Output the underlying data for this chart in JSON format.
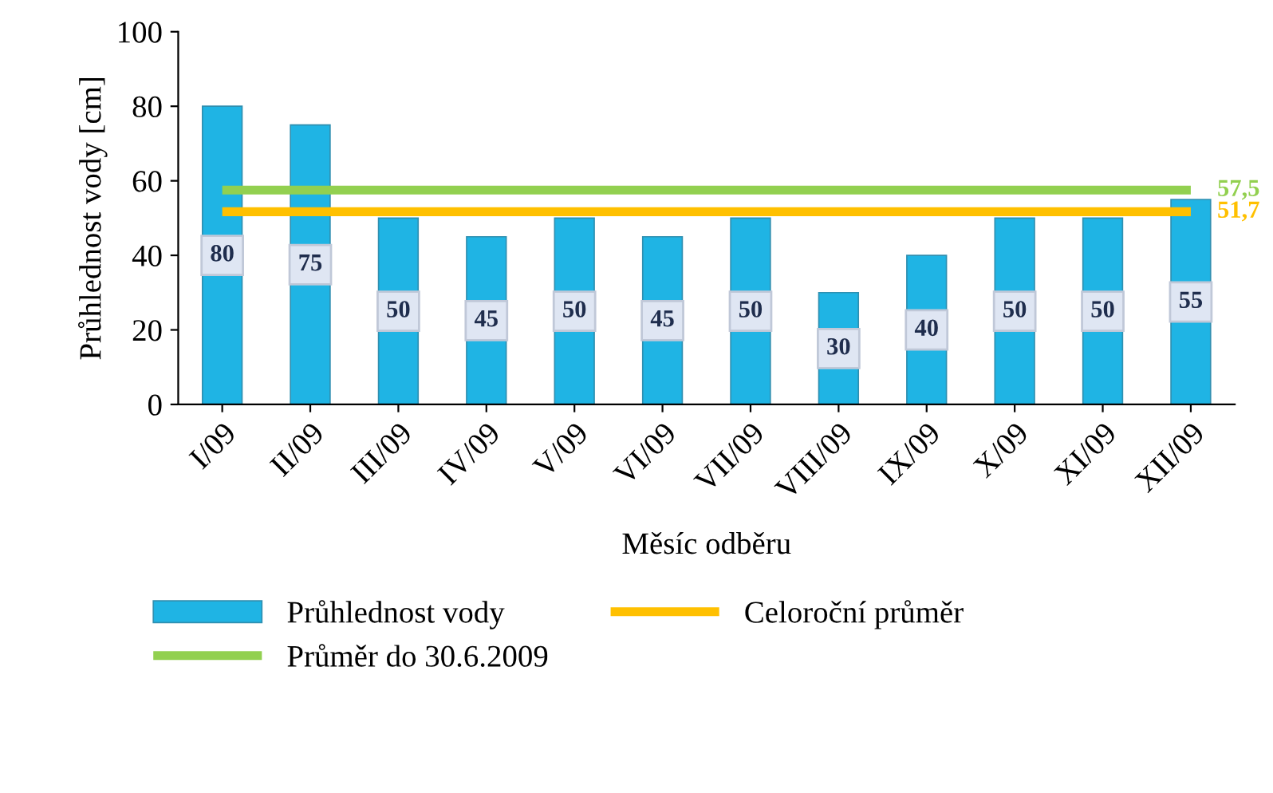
{
  "chart_data": {
    "type": "bar",
    "xlabel": "Měsíc odběru",
    "ylabel": "Průhlednost vody [cm]",
    "categories": [
      "I/09",
      "II/09",
      "III/09",
      "IV/09",
      "V/09",
      "VI/09",
      "VII/09",
      "VIII/09",
      "IX/09",
      "X/09",
      "XI/09",
      "XII/09"
    ],
    "ylim": [
      0,
      100
    ],
    "yticks": [
      0,
      20,
      40,
      60,
      80,
      100
    ],
    "grid": false,
    "legend": "bottom",
    "series": [
      {
        "name": "Průhlednost vody",
        "color": "#1fb4e4",
        "values": [
          80,
          75,
          50,
          45,
          50,
          45,
          50,
          30,
          40,
          50,
          50,
          55
        ],
        "data_labels": true
      },
      {
        "name": "Celoroční průměr",
        "type": "line",
        "color": "#ffc000",
        "values": [
          51.7,
          51.7,
          51.7,
          51.7,
          51.7,
          51.7,
          51.7,
          51.7,
          51.7,
          51.7,
          51.7,
          51.7
        ],
        "value_labels": [
          null,
          null,
          null,
          null,
          null,
          null,
          null,
          null,
          null,
          null,
          null,
          "51,7"
        ]
      },
      {
        "name": "Průměr do 30.6.2009",
        "type": "line",
        "color": "#92d050",
        "values": [
          57.5,
          57.5,
          57.5,
          57.5,
          57.5,
          57.5,
          57.5,
          57.5,
          57.5,
          57.5,
          57.5,
          57.5
        ],
        "value_labels": [
          null,
          null,
          null,
          null,
          null,
          null,
          null,
          null,
          null,
          null,
          null,
          "57,5"
        ]
      }
    ]
  }
}
